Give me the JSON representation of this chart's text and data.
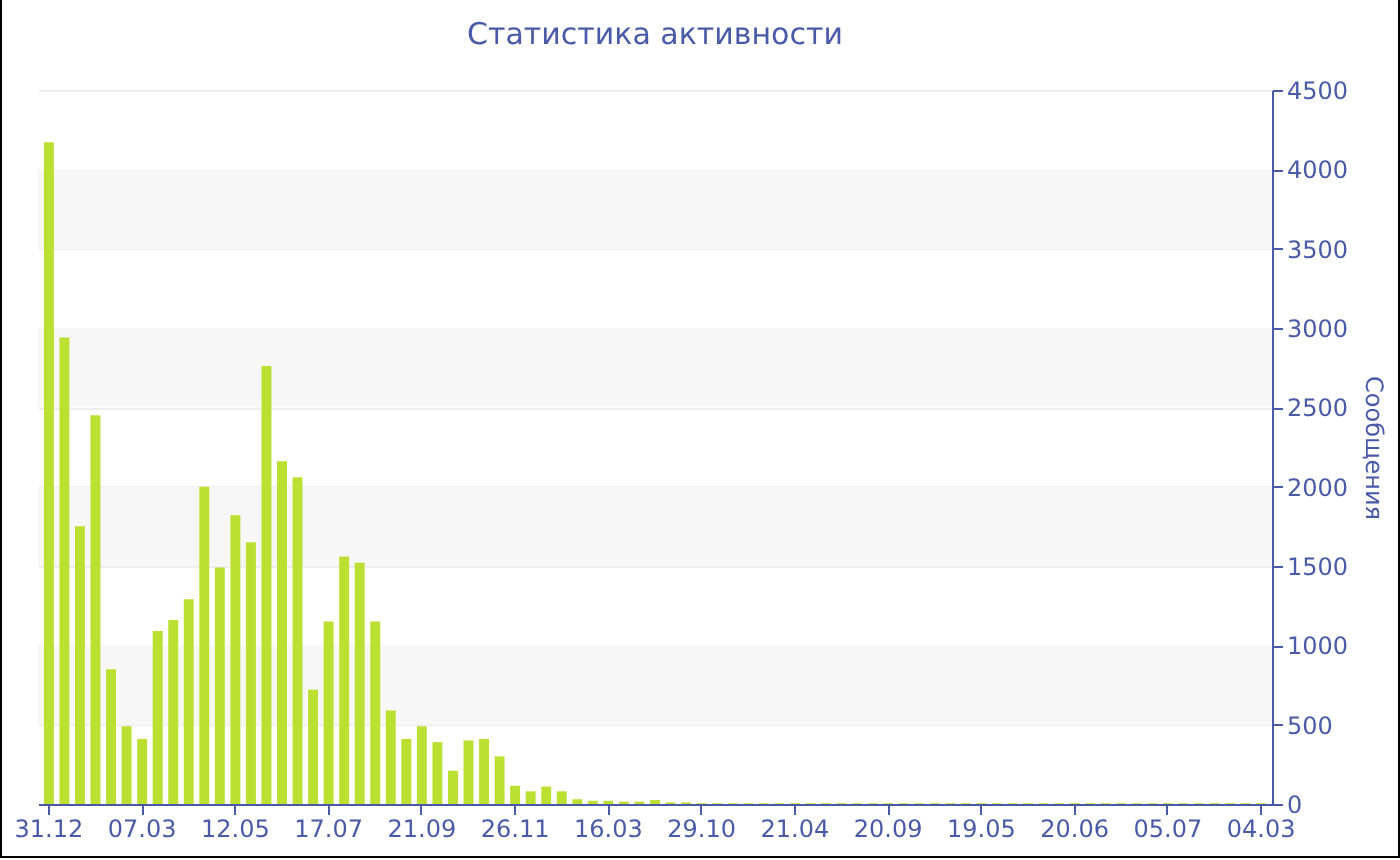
{
  "chart_data": {
    "type": "bar",
    "title": "Статистика активности",
    "ylabel": "Сообщения",
    "categories": [
      "31.12",
      null,
      null,
      null,
      null,
      null,
      "07.03",
      null,
      null,
      null,
      null,
      null,
      "12.05",
      null,
      null,
      null,
      null,
      null,
      "17.07",
      null,
      null,
      null,
      null,
      null,
      "21.09",
      null,
      null,
      null,
      null,
      null,
      "26.11",
      null,
      null,
      null,
      null,
      null,
      "16.03",
      null,
      null,
      null,
      null,
      null,
      "29.10",
      null,
      null,
      null,
      null,
      null,
      "21.04",
      null,
      null,
      null,
      null,
      null,
      "20.09",
      null,
      null,
      null,
      null,
      null,
      "19.05",
      null,
      null,
      null,
      null,
      null,
      "20.06",
      null,
      null,
      null,
      null,
      null,
      "05.07",
      null,
      null,
      null,
      null,
      null,
      "04.03"
    ],
    "values": [
      4170,
      2940,
      1750,
      2450,
      850,
      490,
      410,
      1090,
      1160,
      1290,
      2000,
      1490,
      1820,
      1650,
      2760,
      2160,
      2060,
      720,
      1150,
      1560,
      1520,
      1150,
      590,
      410,
      490,
      390,
      210,
      400,
      410,
      300,
      115,
      80,
      110,
      80,
      30,
      20,
      20,
      15,
      15,
      25,
      10,
      10,
      5,
      5,
      5,
      5,
      5,
      5,
      5,
      5,
      5,
      5,
      5,
      5,
      5,
      5,
      5,
      5,
      5,
      5,
      5,
      5,
      5,
      5,
      5,
      5,
      5,
      5,
      5,
      5,
      5,
      5,
      5,
      5,
      5,
      5,
      5,
      5,
      5
    ],
    "color": "#bbe032",
    "ylim": [
      0,
      4500
    ],
    "yticks": [
      0,
      500,
      1000,
      1500,
      2000,
      2500,
      3000,
      3500,
      4000,
      4500
    ],
    "grid": "y"
  }
}
